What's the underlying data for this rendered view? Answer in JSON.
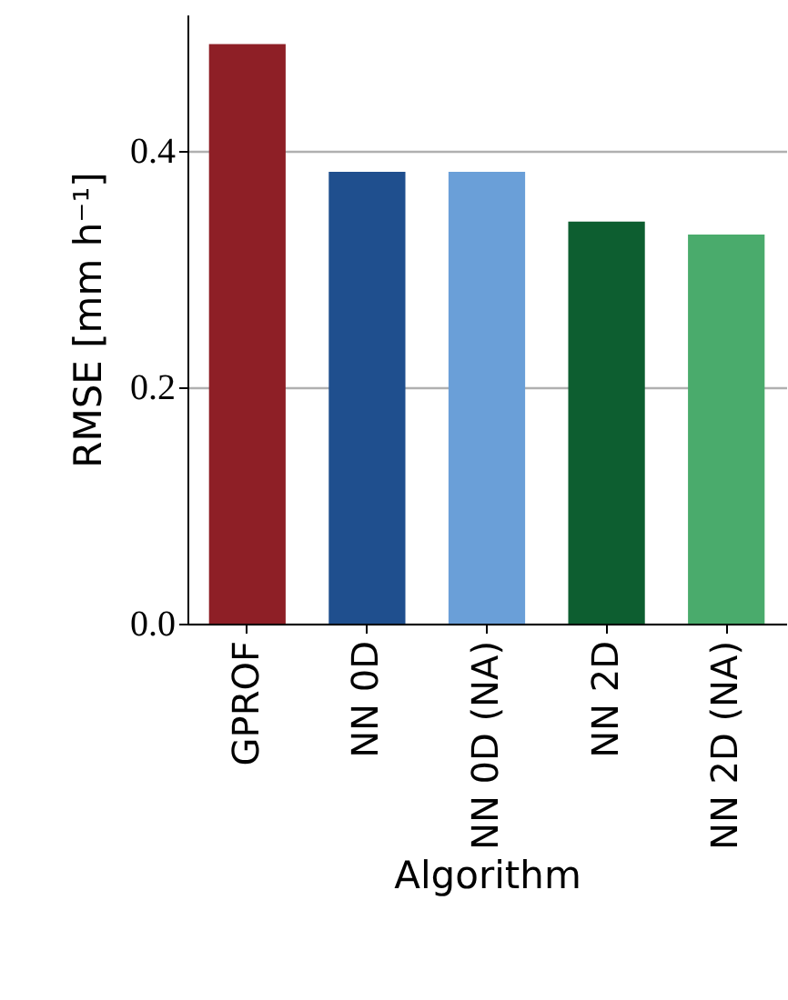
{
  "chart_data": {
    "type": "bar",
    "categories": [
      "GPROF",
      "NN 0D",
      "NN 0D (NA)",
      "NN 2D",
      "NN 2D (NA)"
    ],
    "values": [
      0.49,
      0.382,
      0.382,
      0.34,
      0.329
    ],
    "colors": [
      "#8e1f26",
      "#1f4f8e",
      "#6a9fd8",
      "#0d5e30",
      "#4aab6c"
    ],
    "xlabel": "Algorithm",
    "ylabel": "RMSE [mm h⁻¹]",
    "ylim": [
      0,
      0.515
    ],
    "yticks": [
      {
        "value": 0,
        "label": "0.0"
      },
      {
        "value": 0.2,
        "label": "0.2"
      },
      {
        "value": 0.4,
        "label": "0.4"
      }
    ],
    "grid": "y"
  }
}
